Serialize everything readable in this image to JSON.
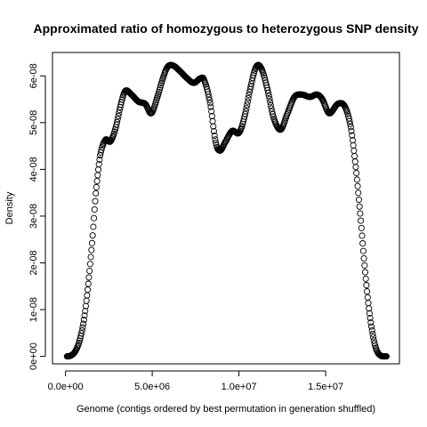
{
  "chart_data": {
    "type": "scatter",
    "title": "Approximated ratio of homozygous to heterozygous SNP density",
    "xlabel": "Genome (contigs ordered by best permutation in generation shuffled)",
    "ylabel": "Density",
    "xlim": [
      -750000,
      19250000
    ],
    "ylim": [
      -1.6e-09,
      6.5e-08
    ],
    "x_ticks": [
      {
        "value": 0,
        "label": "0.0e+00"
      },
      {
        "value": 5000000,
        "label": "5.0e+06"
      },
      {
        "value": 10000000,
        "label": "1.0e+07"
      },
      {
        "value": 15000000,
        "label": "1.5e+07"
      }
    ],
    "y_ticks": [
      {
        "value": 0,
        "label": "0e+00"
      },
      {
        "value": 1e-08,
        "label": "1e-08"
      },
      {
        "value": 2e-08,
        "label": "2e-08"
      },
      {
        "value": 3e-08,
        "label": "3e-08"
      },
      {
        "value": 4e-08,
        "label": "4e-08"
      },
      {
        "value": 5e-08,
        "label": "5e-08"
      },
      {
        "value": 6e-08,
        "label": "6e-08"
      }
    ],
    "grid": false,
    "legend": "none",
    "marker": "open-circle",
    "n_points": 512,
    "curve_x": [
      90000,
      300000,
      550000,
      800000,
      1050000,
      1300000,
      1550000,
      1750000,
      2000000,
      2300000,
      2600000,
      2900000,
      3200000,
      3450000,
      3800000,
      4200000,
      4600000,
      4950000,
      5300000,
      5650000,
      5900000,
      6200000,
      6600000,
      7000000,
      7400000,
      7800000,
      8000000,
      8350000,
      8650000,
      8900000,
      9200000,
      9600000,
      10000000,
      10300000,
      10700000,
      11000000,
      11300000,
      11650000,
      12000000,
      12400000,
      12800000,
      13200000,
      13600000,
      14100000,
      14500000,
      14800000,
      15200000,
      15700000,
      16100000,
      16450000,
      16750000,
      17000000,
      17250000,
      17500000,
      17750000,
      17950000,
      18150000,
      18350000,
      18500000
    ],
    "curve_y": [
      0,
      1.5e-10,
      1e-09,
      3.2e-09,
      7.5e-09,
      1.5e-08,
      2.5e-08,
      3.5e-08,
      4.3e-08,
      4.63e-08,
      4.6e-08,
      4.9e-08,
      5.4e-08,
      5.68e-08,
      5.6e-08,
      5.45e-08,
      5.4e-08,
      5.2e-08,
      5.55e-08,
      5.98e-08,
      6.2e-08,
      6.22e-08,
      6.1e-08,
      5.95e-08,
      5.85e-08,
      5.95e-08,
      5.9e-08,
      5.4e-08,
      4.6e-08,
      4.4e-08,
      4.58e-08,
      4.82e-08,
      4.78e-08,
      5.1e-08,
      5.8e-08,
      6.2e-08,
      6.15e-08,
      5.7e-08,
      5.1e-08,
      4.85e-08,
      5.2e-08,
      5.55e-08,
      5.6e-08,
      5.55e-08,
      5.6e-08,
      5.5e-08,
      5.2e-08,
      5.4e-08,
      5.35e-08,
      4.9e-08,
      4e-08,
      3e-08,
      1.9e-08,
      1e-08,
      4e-09,
      1.2e-09,
      2e-10,
      0,
      0
    ]
  }
}
